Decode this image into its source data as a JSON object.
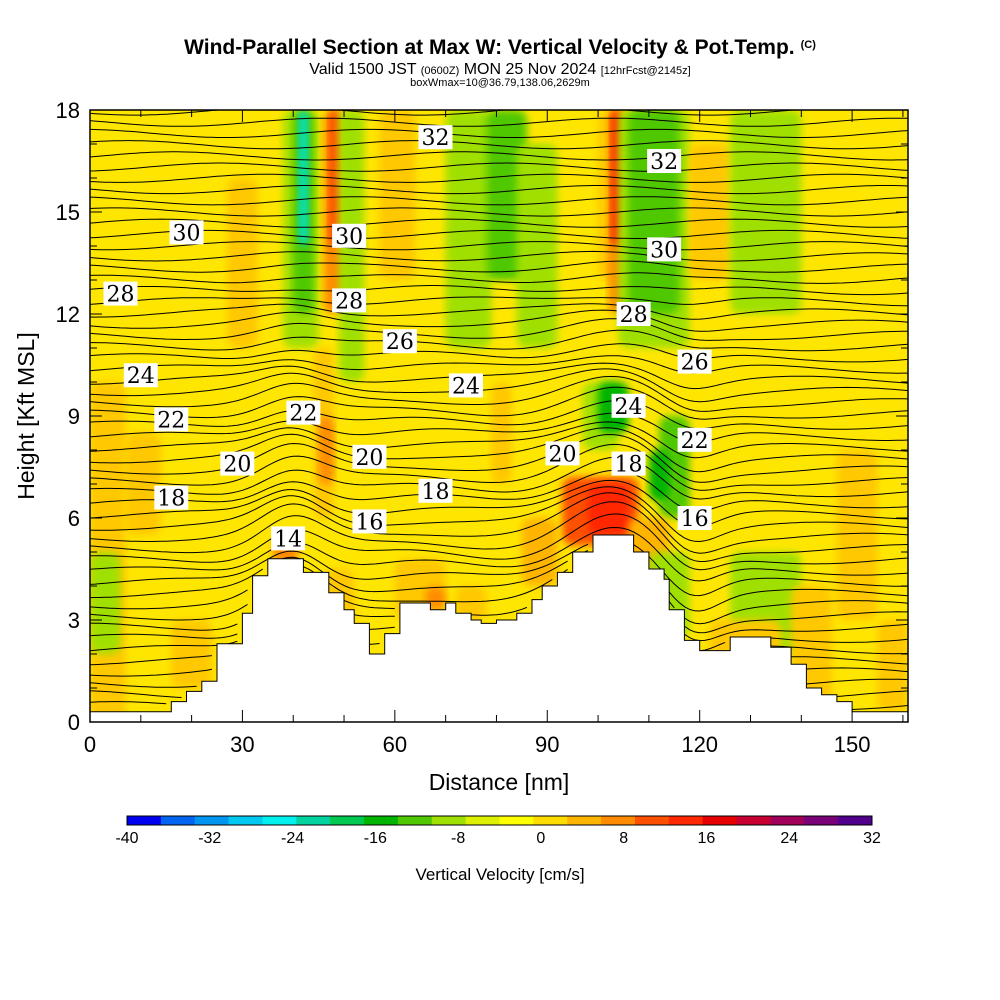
{
  "header": {
    "title": "Wind-Parallel Section at Max W: Vertical Velocity & Pot.Temp.",
    "copyright": "(C)",
    "valid_prefix": "Valid 1500 JST",
    "valid_utc": "(0600Z)",
    "valid_date": "MON 25 Nov 2024",
    "forecast": "[12hrFcst@2145z]",
    "box_info": "boxWmax=10@36.79,138.06,2629m"
  },
  "chart_data": {
    "type": "heatmap",
    "xlabel": "Distance [nm]",
    "ylabel": "Height [Kft MSL]",
    "xlim": [
      0,
      161
    ],
    "ylim": [
      0,
      18
    ],
    "x_ticks": [
      0,
      30,
      60,
      90,
      120,
      150
    ],
    "y_ticks": [
      0,
      3,
      6,
      9,
      12,
      15,
      18
    ],
    "colorbar": {
      "title": "Vertical Velocity [cm/s]",
      "tick_labels": [
        "-40",
        "-32",
        "-24",
        "-16",
        "-8",
        "0",
        "8",
        "16",
        "24",
        "32"
      ],
      "colors": [
        "#0000f0",
        "#0064f0",
        "#0096f0",
        "#00c8f0",
        "#00f0f0",
        "#00d2a0",
        "#00c850",
        "#00b400",
        "#50c800",
        "#a0e000",
        "#dcf000",
        "#ffff00",
        "#ffdc00",
        "#ffb400",
        "#ff8c00",
        "#ff5000",
        "#ff2800",
        "#e60000",
        "#c80032",
        "#a0005a",
        "#780078",
        "#50008c"
      ]
    },
    "terrain_profile_kft": [
      [
        0,
        0.3
      ],
      [
        16,
        0.3
      ],
      [
        16,
        0.6
      ],
      [
        19,
        0.6
      ],
      [
        19,
        0.9
      ],
      [
        22,
        0.9
      ],
      [
        22,
        1.2
      ],
      [
        25,
        1.2
      ],
      [
        25,
        2.3
      ],
      [
        30,
        2.3
      ],
      [
        30,
        3.2
      ],
      [
        32,
        3.2
      ],
      [
        32,
        4.3
      ],
      [
        35,
        4.3
      ],
      [
        35,
        4.8
      ],
      [
        42,
        4.8
      ],
      [
        42,
        4.4
      ],
      [
        47,
        4.4
      ],
      [
        47,
        3.8
      ],
      [
        50,
        3.8
      ],
      [
        50,
        3.3
      ],
      [
        52,
        3.3
      ],
      [
        52,
        2.9
      ],
      [
        55,
        2.9
      ],
      [
        55,
        2.0
      ],
      [
        58,
        2.0
      ],
      [
        58,
        2.6
      ],
      [
        61,
        2.6
      ],
      [
        61,
        3.5
      ],
      [
        67,
        3.5
      ],
      [
        67,
        3.3
      ],
      [
        70,
        3.3
      ],
      [
        70,
        3.5
      ],
      [
        72,
        3.5
      ],
      [
        72,
        3.2
      ],
      [
        75,
        3.2
      ],
      [
        75,
        3.0
      ],
      [
        77,
        3.0
      ],
      [
        77,
        2.9
      ],
      [
        80,
        2.9
      ],
      [
        80,
        3.0
      ],
      [
        84,
        3.0
      ],
      [
        84,
        3.2
      ],
      [
        87,
        3.2
      ],
      [
        87,
        3.6
      ],
      [
        89,
        3.6
      ],
      [
        89,
        4.0
      ],
      [
        92,
        4.0
      ],
      [
        92,
        4.4
      ],
      [
        95,
        4.4
      ],
      [
        95,
        5.0
      ],
      [
        99,
        5.0
      ],
      [
        99,
        5.5
      ],
      [
        107,
        5.5
      ],
      [
        107,
        5.0
      ],
      [
        110,
        5.0
      ],
      [
        110,
        4.5
      ],
      [
        113,
        4.5
      ],
      [
        113,
        4.2
      ],
      [
        114,
        4.2
      ],
      [
        114,
        3.3
      ],
      [
        117,
        3.3
      ],
      [
        117,
        2.4
      ],
      [
        120,
        2.4
      ],
      [
        120,
        2.1
      ],
      [
        126,
        2.1
      ],
      [
        126,
        2.5
      ],
      [
        134,
        2.5
      ],
      [
        134,
        2.2
      ],
      [
        138,
        2.2
      ],
      [
        138,
        1.7
      ],
      [
        141,
        1.7
      ],
      [
        141,
        1.0
      ],
      [
        144,
        1.0
      ],
      [
        144,
        0.8
      ],
      [
        147,
        0.8
      ],
      [
        147,
        0.6
      ],
      [
        150,
        0.6
      ],
      [
        150,
        0.3
      ],
      [
        161,
        0.3
      ]
    ],
    "contour_labels": [
      {
        "text": "32",
        "x": 68,
        "y": 17.2
      },
      {
        "text": "32",
        "x": 113,
        "y": 16.5
      },
      {
        "text": "30",
        "x": 19,
        "y": 14.4
      },
      {
        "text": "30",
        "x": 51,
        "y": 14.3
      },
      {
        "text": "30",
        "x": 113,
        "y": 13.9
      },
      {
        "text": "28",
        "x": 6,
        "y": 12.6
      },
      {
        "text": "28",
        "x": 51,
        "y": 12.4
      },
      {
        "text": "28",
        "x": 107,
        "y": 12.0
      },
      {
        "text": "26",
        "x": 61,
        "y": 11.2
      },
      {
        "text": "26",
        "x": 119,
        "y": 10.6
      },
      {
        "text": "24",
        "x": 10,
        "y": 10.2
      },
      {
        "text": "24",
        "x": 74,
        "y": 9.9
      },
      {
        "text": "24",
        "x": 106,
        "y": 9.3
      },
      {
        "text": "22",
        "x": 16,
        "y": 8.9
      },
      {
        "text": "22",
        "x": 42,
        "y": 9.1
      },
      {
        "text": "22",
        "x": 119,
        "y": 8.3
      },
      {
        "text": "20",
        "x": 29,
        "y": 7.6
      },
      {
        "text": "20",
        "x": 55,
        "y": 7.8
      },
      {
        "text": "20",
        "x": 93,
        "y": 7.9
      },
      {
        "text": "18",
        "x": 16,
        "y": 6.6
      },
      {
        "text": "18",
        "x": 68,
        "y": 6.8
      },
      {
        "text": "18",
        "x": 106,
        "y": 7.6
      },
      {
        "text": "16",
        "x": 55,
        "y": 5.9
      },
      {
        "text": "16",
        "x": 119,
        "y": 6.0
      },
      {
        "text": "14",
        "x": 39,
        "y": 5.4
      }
    ]
  }
}
